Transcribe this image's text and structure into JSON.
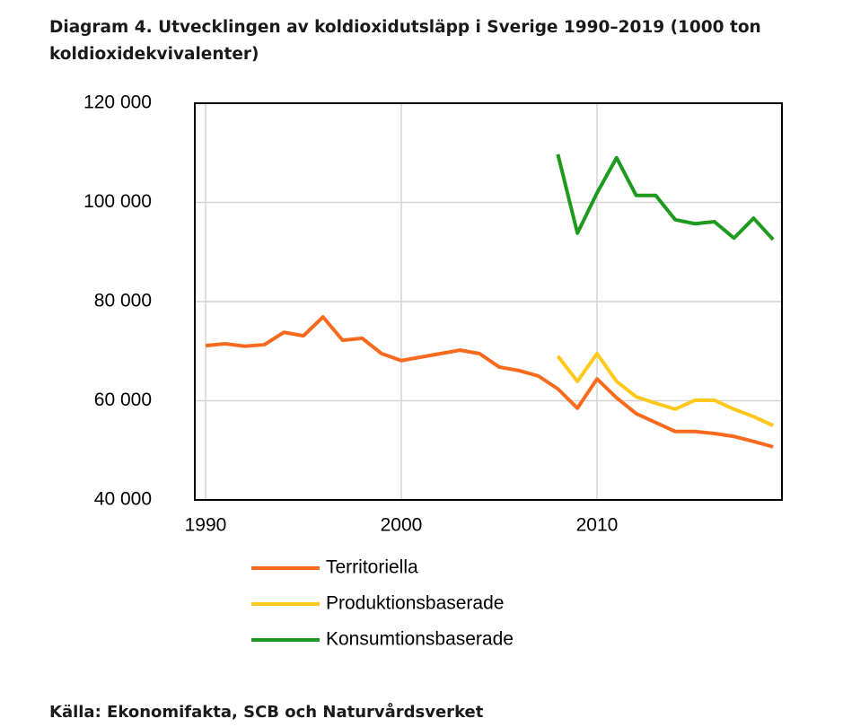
{
  "chart_data": {
    "type": "line",
    "title": "Diagram 4. Utvecklingen av koldioxidutsläpp i Sverige 1990–2019 (1000 ton koldioxidekvivalenter)",
    "source": "Källa: Ekonomifakta, SCB och Naturvårdsverket",
    "x": [
      1990,
      1991,
      1992,
      1993,
      1994,
      1995,
      1996,
      1997,
      1998,
      1999,
      2000,
      2001,
      2002,
      2003,
      2004,
      2005,
      2006,
      2007,
      2008,
      2009,
      2010,
      2011,
      2012,
      2013,
      2014,
      2015,
      2016,
      2017,
      2018,
      2019
    ],
    "xlim": [
      1989.45,
      2019.45
    ],
    "xticks": [
      1990,
      2000,
      2010
    ],
    "ylim": [
      40000,
      120000
    ],
    "yticks": [
      {
        "value": 40000,
        "label": "40 000"
      },
      {
        "value": 60000,
        "label": "60 000"
      },
      {
        "value": 80000,
        "label": "80 000"
      },
      {
        "value": 100000,
        "label": "100 000"
      },
      {
        "value": 120000,
        "label": "120 000"
      }
    ],
    "grid": true,
    "series": [
      {
        "name": "Territoriella",
        "color": "#fa6a1e",
        "values": [
          71100,
          71500,
          71000,
          71300,
          73800,
          73100,
          76900,
          72200,
          72600,
          69500,
          68100,
          68800,
          69500,
          70200,
          69500,
          66800,
          66100,
          65000,
          62400,
          58500,
          64400,
          60600,
          57400,
          55600,
          53800,
          53800,
          53400,
          52800,
          51800,
          50700
        ]
      },
      {
        "name": "Produktionsbaserade",
        "color": "#ffc81a",
        "values": [
          null,
          null,
          null,
          null,
          null,
          null,
          null,
          null,
          null,
          null,
          null,
          null,
          null,
          null,
          null,
          null,
          null,
          null,
          69000,
          63900,
          69500,
          63900,
          60800,
          59500,
          58300,
          60100,
          60100,
          58300,
          56800,
          55000
        ]
      },
      {
        "name": "Konsumtionsbaserade",
        "color": "#1e9b1e",
        "values": [
          null,
          null,
          null,
          null,
          null,
          null,
          null,
          null,
          null,
          null,
          null,
          null,
          null,
          null,
          null,
          null,
          null,
          null,
          109700,
          93800,
          101900,
          109000,
          101400,
          101400,
          96500,
          95700,
          96100,
          92800,
          96800,
          92500
        ]
      }
    ]
  }
}
